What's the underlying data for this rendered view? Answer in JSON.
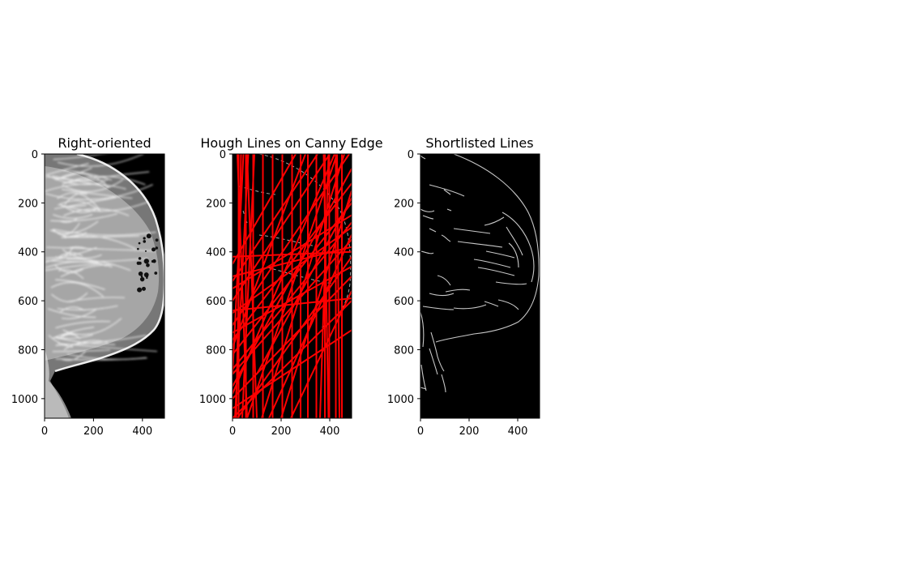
{
  "chart_data": [
    {
      "type": "image",
      "title": "Right-oriented",
      "content": "right-oriented mammogram, grayscale",
      "xlim": [
        0,
        490
      ],
      "ylim": [
        1080,
        0
      ],
      "xticks": [
        0,
        200,
        400
      ],
      "yticks": [
        0,
        200,
        400,
        600,
        800,
        1000
      ],
      "background": "#000000",
      "foreground": "#ffffff"
    },
    {
      "type": "image",
      "title": "Hough Lines on Canny Edge",
      "content": "Canny edge map with detected Hough lines overlaid in red",
      "xlim": [
        0,
        490
      ],
      "ylim": [
        1080,
        0
      ],
      "xticks": [
        0,
        200,
        400
      ],
      "yticks": [
        0,
        200,
        400,
        600,
        800,
        1000
      ],
      "background": "#000000",
      "line_color": "#ff0000",
      "hough_lines": [
        [
          [
            25,
            0
          ],
          [
            25,
            1080
          ]
        ],
        [
          [
            55,
            0
          ],
          [
            55,
            1080
          ]
        ],
        [
          [
            85,
            0
          ],
          [
            85,
            1080
          ]
        ],
        [
          [
            125,
            0
          ],
          [
            125,
            1080
          ]
        ],
        [
          [
            165,
            0
          ],
          [
            165,
            1080
          ]
        ],
        [
          [
            205,
            0
          ],
          [
            205,
            1080
          ]
        ],
        [
          [
            245,
            0
          ],
          [
            245,
            1080
          ]
        ],
        [
          [
            280,
            0
          ],
          [
            280,
            1080
          ]
        ],
        [
          [
            310,
            0
          ],
          [
            310,
            1080
          ]
        ],
        [
          [
            345,
            0
          ],
          [
            345,
            1080
          ]
        ],
        [
          [
            380,
            0
          ],
          [
            380,
            1080
          ]
        ],
        [
          [
            398,
            0
          ],
          [
            398,
            1080
          ]
        ],
        [
          [
            425,
            0
          ],
          [
            425,
            1080
          ]
        ],
        [
          [
            450,
            0
          ],
          [
            450,
            1080
          ]
        ],
        [
          [
            10,
            1080
          ],
          [
            65,
            0
          ]
        ],
        [
          [
            40,
            1080
          ],
          [
            90,
            0
          ]
        ],
        [
          [
            0,
            900
          ],
          [
            45,
            0
          ]
        ],
        [
          [
            15,
            1080
          ],
          [
            35,
            0
          ]
        ],
        [
          [
            60,
            1080
          ],
          [
            20,
            0
          ]
        ],
        [
          [
            100,
            1080
          ],
          [
            60,
            0
          ]
        ],
        [
          [
            360,
            1080
          ],
          [
            395,
            0
          ]
        ],
        [
          [
            395,
            1080
          ],
          [
            375,
            0
          ]
        ],
        [
          [
            440,
            1080
          ],
          [
            430,
            0
          ]
        ],
        [
          [
            0,
            820
          ],
          [
            490,
            200
          ]
        ],
        [
          [
            0,
            760
          ],
          [
            490,
            120
          ]
        ],
        [
          [
            0,
            700
          ],
          [
            480,
            0
          ]
        ],
        [
          [
            0,
            900
          ],
          [
            490,
            350
          ]
        ],
        [
          [
            0,
            1000
          ],
          [
            490,
            500
          ]
        ],
        [
          [
            0,
            600
          ],
          [
            400,
            0
          ]
        ],
        [
          [
            0,
            520
          ],
          [
            350,
            0
          ]
        ],
        [
          [
            0,
            1080
          ],
          [
            490,
            600
          ]
        ],
        [
          [
            20,
            1080
          ],
          [
            490,
            420
          ]
        ],
        [
          [
            0,
            650
          ],
          [
            490,
            300
          ]
        ],
        [
          [
            0,
            550
          ],
          [
            490,
            250
          ]
        ],
        [
          [
            0,
            500
          ],
          [
            490,
            380
          ]
        ],
        [
          [
            0,
            420
          ],
          [
            490,
            400
          ]
        ],
        [
          [
            0,
            640
          ],
          [
            490,
            590
          ]
        ],
        [
          [
            60,
            1080
          ],
          [
            430,
            0
          ]
        ],
        [
          [
            120,
            1080
          ],
          [
            460,
            0
          ]
        ],
        [
          [
            200,
            1080
          ],
          [
            490,
            150
          ]
        ],
        [
          [
            0,
            950
          ],
          [
            490,
            60
          ]
        ],
        [
          [
            0,
            790
          ],
          [
            300,
            0
          ]
        ],
        [
          [
            0,
            880
          ],
          [
            490,
            280
          ]
        ],
        [
          [
            100,
            900
          ],
          [
            490,
            180
          ]
        ],
        [
          [
            0,
            1040
          ],
          [
            490,
            720
          ]
        ],
        [
          [
            150,
            1080
          ],
          [
            490,
            330
          ]
        ],
        [
          [
            0,
            730
          ],
          [
            490,
            460
          ]
        ],
        [
          [
            0,
            450
          ],
          [
            260,
            0
          ]
        ],
        [
          [
            240,
            1080
          ],
          [
            490,
            560
          ]
        ],
        [
          [
            0,
            980
          ],
          [
            420,
            0
          ]
        ]
      ]
    },
    {
      "type": "image",
      "title": "Shortlisted Lines",
      "content": "Canny edge map of the breast outline and internal structures, gray on black",
      "xlim": [
        0,
        490
      ],
      "ylim": [
        1080,
        0
      ],
      "xticks": [
        0,
        200,
        400
      ],
      "yticks": [
        0,
        200,
        400,
        600,
        800,
        1000
      ],
      "background": "#000000",
      "edge_color": "#c8c8c8"
    }
  ]
}
